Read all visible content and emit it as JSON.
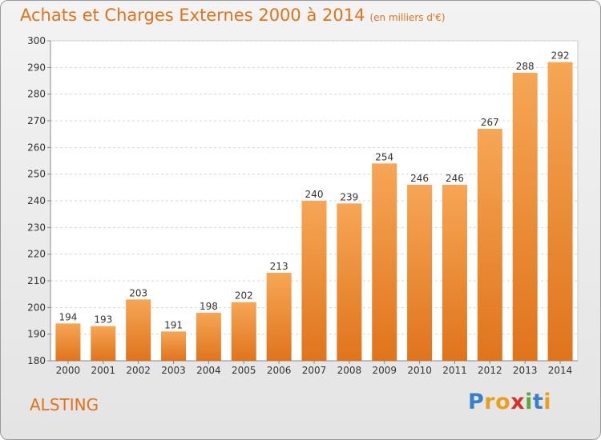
{
  "chart_data": {
    "type": "bar",
    "title": "Achats et Charges Externes 2000 à 2014",
    "subtitle": "(en milliers d'€)",
    "categories": [
      "2000",
      "2001",
      "2002",
      "2003",
      "2004",
      "2005",
      "2006",
      "2007",
      "2008",
      "2009",
      "2010",
      "2011",
      "2012",
      "2013",
      "2014"
    ],
    "values": [
      194,
      193,
      203,
      191,
      198,
      202,
      213,
      240,
      239,
      254,
      246,
      246,
      267,
      288,
      292
    ],
    "ylim": [
      180,
      300
    ],
    "yticks": [
      180,
      190,
      200,
      210,
      220,
      230,
      240,
      250,
      260,
      270,
      280,
      290,
      300
    ],
    "xlabel": "",
    "ylabel": "",
    "grid": true,
    "bar_color": "#f0913a"
  },
  "location": "ALSTING",
  "brand": {
    "letters": [
      "P",
      "r",
      "o",
      "x",
      "i",
      "t",
      "i"
    ],
    "colors": [
      "#3a7fc7",
      "#e8a020",
      "#e8a020",
      "#d8302a",
      "#5aa83a",
      "#3a7fc7",
      "#e8a020"
    ]
  }
}
